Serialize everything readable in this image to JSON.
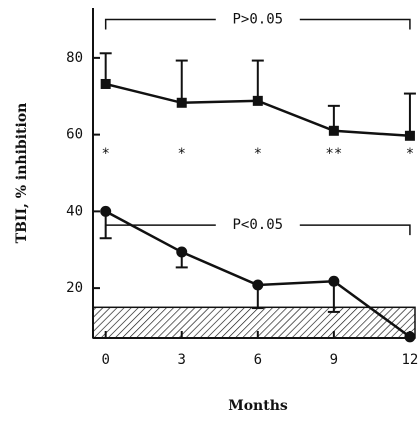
{
  "chart_data": {
    "type": "line",
    "x_label": "Months",
    "y_label": "TBII, % inhibition",
    "x": [
      0,
      3,
      6,
      9,
      12
    ],
    "xlim": [
      -0.5,
      12.2
    ],
    "ylim": [
      7,
      93
    ],
    "xticks": [
      0,
      3,
      6,
      9,
      12
    ],
    "yticks": [
      20,
      40,
      60,
      80
    ],
    "series": [
      {
        "marker": "square",
        "color": "#111111",
        "values": [
          73.2,
          68.3,
          68.8,
          61,
          59.7
        ],
        "errors": [
          8,
          11,
          10.5,
          6.5,
          11
        ],
        "error_direction": "up"
      },
      {
        "marker": "circle",
        "color": "#111111",
        "values": [
          40,
          29.4,
          20.8,
          21.8,
          7.3
        ],
        "errors": [
          7,
          4,
          6,
          8,
          0
        ],
        "error_direction": "down"
      }
    ],
    "shaded_band_top": 15,
    "brackets": [
      {
        "text": "P>0.05",
        "y": 90,
        "x": [
          0,
          12
        ]
      },
      {
        "text": "P<0.05",
        "y": 36.4,
        "x": [
          0,
          12
        ]
      }
    ],
    "asterisks": {
      "y": 56,
      "labels": [
        "*",
        "*",
        "*",
        "**",
        "*"
      ]
    }
  }
}
